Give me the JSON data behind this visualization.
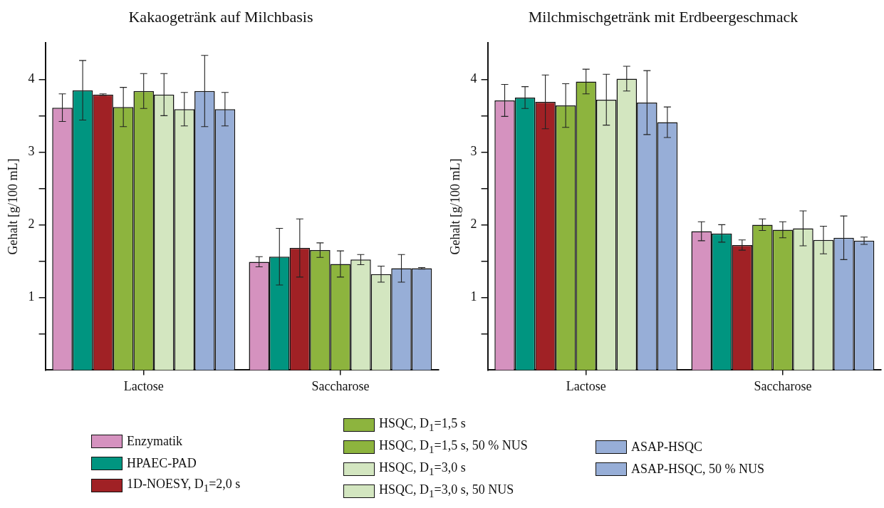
{
  "chart_data": [
    {
      "type": "bar",
      "title": "Kakaogetränk auf Milchbasis",
      "ylabel": "Gehalt [g/100 mL]",
      "categories": [
        "Lactose",
        "Saccharose"
      ],
      "ylim": [
        0,
        4.5
      ],
      "yticks": [
        {
          "value": 0.5,
          "label": null
        },
        1,
        {
          "value": 1.5,
          "label": null
        },
        2,
        {
          "value": 2.5,
          "label": null
        },
        3,
        {
          "value": 3.5,
          "label": null
        },
        4
      ],
      "grid": false,
      "legend": "bottom",
      "series": [
        {
          "name": "Enzymatik",
          "color": "#d592bf",
          "values": [
            3.61,
            1.49
          ],
          "errors": [
            0.19,
            0.07
          ]
        },
        {
          "name": "HPAEC-PAD",
          "color": "#009580",
          "values": [
            3.85,
            1.56
          ],
          "errors": [
            0.41,
            0.39
          ]
        },
        {
          "name": "1D-NOESY, D$_{1}$=2,0 s",
          "color": "#a02125",
          "values": [
            3.79,
            1.68
          ],
          "errors": [
            0.01,
            0.4
          ]
        },
        {
          "name": "HSQC, D$_{1}$=1,5 s",
          "color": "#8db43e",
          "values": [
            3.62,
            1.65
          ],
          "errors": [
            0.27,
            0.1
          ]
        },
        {
          "name": "HSQC, D$_{1}$=1,5 s, 50 % NUS",
          "color": "#8db43e",
          "values": [
            3.84,
            1.46
          ],
          "errors": [
            0.24,
            0.18
          ]
        },
        {
          "name": "HSQC, D$_{1}$=3,0 s",
          "color": "#d3e6c0",
          "values": [
            3.79,
            1.52
          ],
          "errors": [
            0.29,
            0.07
          ]
        },
        {
          "name": "HSQC, D$_{1}$=3,0 s, 50  NUS",
          "color": "#d3e6c0",
          "values": [
            3.59,
            1.32
          ],
          "errors": [
            0.23,
            0.11
          ]
        },
        {
          "name": "ASAP-HSQC",
          "color": "#97aed7",
          "values": [
            3.84,
            1.4
          ],
          "errors": [
            0.49,
            0.19
          ]
        },
        {
          "name": "ASAP-HSQC, 50 % NUS",
          "color": "#97aed7",
          "values": [
            3.59,
            1.4
          ],
          "errors": [
            0.23,
            0.01
          ]
        }
      ]
    },
    {
      "type": "bar",
      "title": "Milchmischgetränk mit Erdbeergeschmack",
      "ylabel": "Gehalt [g/100 mL]",
      "categories": [
        "Lactose",
        "Saccharose"
      ],
      "ylim": [
        0,
        4.5
      ],
      "yticks": [
        {
          "value": 0.5,
          "label": null
        },
        1,
        {
          "value": 1.5,
          "label": null
        },
        2,
        {
          "value": 2.5,
          "label": null
        },
        3,
        {
          "value": 3.5,
          "label": null
        },
        4
      ],
      "grid": false,
      "series": [
        {
          "color": "#d592bf",
          "values": [
            3.71,
            1.91
          ],
          "errors": [
            0.22,
            0.13
          ]
        },
        {
          "color": "#009580",
          "values": [
            3.75,
            1.88
          ],
          "errors": [
            0.15,
            0.12
          ]
        },
        {
          "color": "#a02125",
          "values": [
            3.69,
            1.72
          ],
          "errors": [
            0.37,
            0.07
          ]
        },
        {
          "color": "#8db43e",
          "values": [
            3.64,
            2.0
          ],
          "errors": [
            0.3,
            0.08
          ]
        },
        {
          "color": "#8db43e",
          "values": [
            3.97,
            1.93
          ],
          "errors": [
            0.17,
            0.11
          ]
        },
        {
          "color": "#d3e6c0",
          "values": [
            3.72,
            1.95
          ],
          "errors": [
            0.35,
            0.24
          ]
        },
        {
          "color": "#d3e6c0",
          "values": [
            4.01,
            1.79
          ],
          "errors": [
            0.17,
            0.19
          ]
        },
        {
          "color": "#97aed7",
          "values": [
            3.68,
            1.82
          ],
          "errors": [
            0.44,
            0.3
          ]
        },
        {
          "color": "#97aed7",
          "values": [
            3.41,
            1.78
          ],
          "errors": [
            0.21,
            0.05
          ]
        }
      ]
    }
  ]
}
